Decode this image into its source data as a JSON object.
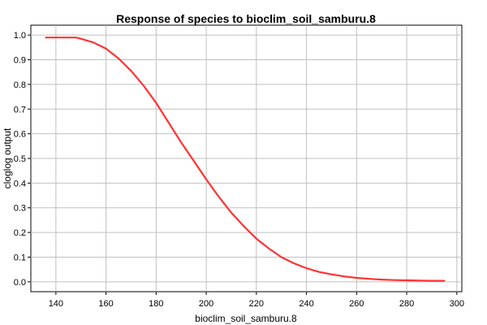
{
  "chart_data": {
    "type": "line",
    "title": "Response of species to bioclim_soil_samburu.8",
    "xlabel": "bioclim_soil_samburu.8",
    "ylabel": "cloglog output",
    "xlim": [
      130,
      302
    ],
    "ylim": [
      -0.04,
      1.04
    ],
    "x_ticks": [
      140,
      160,
      180,
      200,
      220,
      240,
      260,
      280,
      300
    ],
    "y_ticks": [
      0.0,
      0.1,
      0.2,
      0.3,
      0.4,
      0.5,
      0.6,
      0.7,
      0.8,
      0.9,
      1.0
    ],
    "x_tick_labels": [
      "140",
      "160",
      "180",
      "200",
      "220",
      "240",
      "260",
      "280",
      "300"
    ],
    "y_tick_labels": [
      "0.0",
      "0.1",
      "0.2",
      "0.3",
      "0.4",
      "0.5",
      "0.6",
      "0.7",
      "0.8",
      "0.9",
      "1.0"
    ],
    "grid": true,
    "series": [
      {
        "color": "#ff3333",
        "x": [
          136,
          140,
          145,
          148,
          150,
          155,
          160,
          165,
          170,
          175,
          180,
          185,
          190,
          195,
          200,
          205,
          210,
          215,
          220,
          225,
          230,
          235,
          240,
          245,
          250,
          255,
          260,
          265,
          270,
          275,
          280,
          285,
          290,
          295
        ],
        "y": [
          0.99,
          0.99,
          0.99,
          0.99,
          0.985,
          0.97,
          0.945,
          0.905,
          0.855,
          0.795,
          0.725,
          0.645,
          0.565,
          0.49,
          0.415,
          0.345,
          0.28,
          0.225,
          0.175,
          0.135,
          0.1,
          0.075,
          0.055,
          0.04,
          0.03,
          0.022,
          0.016,
          0.012,
          0.009,
          0.007,
          0.006,
          0.005,
          0.004,
          0.004
        ]
      }
    ]
  }
}
